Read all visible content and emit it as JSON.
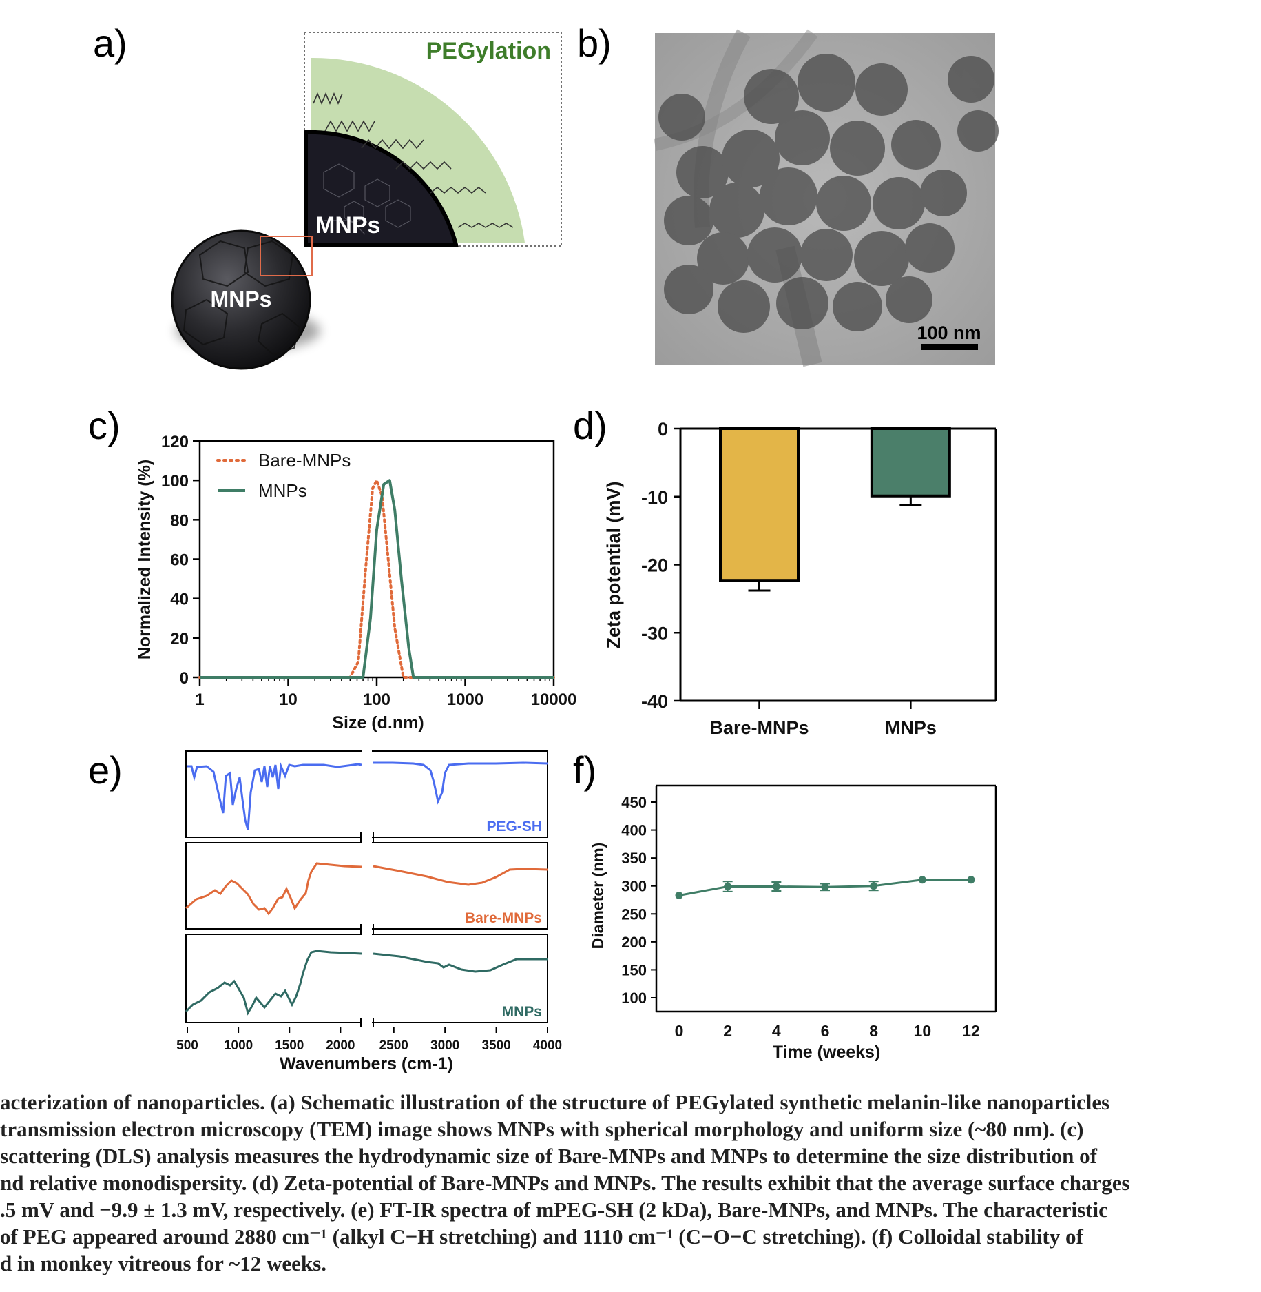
{
  "panels": {
    "a": "a)",
    "b": "b)",
    "c": "c)",
    "d": "d)",
    "e": "e)",
    "f": "f)"
  },
  "schematic": {
    "peg_label": "PEGylation",
    "core_label_inset": "MNPs",
    "core_label_sphere": "MNPs",
    "colors": {
      "peg_shell": "#c6ddb0",
      "peg_text": "#3e7d2a",
      "core": "#1b1a24",
      "inset_frame": "#e06b4a"
    }
  },
  "tem": {
    "scale_label": "100 nm"
  },
  "chart_data": [
    {
      "id": "c",
      "type": "line",
      "xlabel": "Size (d.nm)",
      "ylabel": "Normalized Intensity (%)",
      "xscale": "log",
      "xlim": [
        1,
        10000
      ],
      "ylim": [
        0,
        120
      ],
      "xticks": [
        "1",
        "10",
        "100",
        "1000",
        "10000"
      ],
      "yticks": [
        "0",
        "20",
        "40",
        "60",
        "80",
        "100",
        "120"
      ],
      "legend_position": "top-left",
      "series": [
        {
          "name": "Bare-MNPs",
          "style": "dotted",
          "color": "#e06a3a",
          "x": [
            1,
            50,
            62,
            75,
            90,
            100,
            115,
            135,
            160,
            200,
            10000
          ],
          "y": [
            0,
            0,
            8,
            55,
            96,
            100,
            92,
            60,
            25,
            0,
            0
          ]
        },
        {
          "name": "MNPs",
          "style": "solid",
          "color": "#3f7d66",
          "x": [
            1,
            70,
            85,
            100,
            120,
            140,
            160,
            190,
            230,
            260,
            10000
          ],
          "y": [
            0,
            0,
            30,
            75,
            98,
            100,
            85,
            50,
            15,
            0,
            0
          ]
        }
      ]
    },
    {
      "id": "d",
      "type": "bar",
      "ylabel": "Zeta potential (mV)",
      "ylim": [
        -40,
        0
      ],
      "yticks": [
        "0",
        "-10",
        "-20",
        "-30",
        "-40"
      ],
      "categories": [
        "Bare-MNPs",
        "MNPs"
      ],
      "values": [
        -22.3,
        -9.9
      ],
      "errors": [
        1.5,
        1.3
      ],
      "colors": [
        "#e3b548",
        "#4b7f6a"
      ]
    },
    {
      "id": "e",
      "type": "line",
      "xlabel": "Wavenumbers (cm-1)",
      "xticks": [
        "500",
        "1000",
        "1500",
        "2000",
        "2500",
        "3000",
        "3500",
        "4000"
      ],
      "x_break": [
        2200,
        2300
      ],
      "series": [
        {
          "name": "PEG-SH",
          "color": "#4a6cf0"
        },
        {
          "name": "Bare-MNPs",
          "color": "#e06a3a"
        },
        {
          "name": "MNPs",
          "color": "#2f6a63"
        }
      ]
    },
    {
      "id": "f",
      "type": "line",
      "xlabel": "Time (weeks)",
      "ylabel": "Diameter (nm)",
      "xlim": [
        0,
        12
      ],
      "ylim": [
        100,
        450
      ],
      "xticks": [
        "0",
        "2",
        "4",
        "6",
        "8",
        "10",
        "12"
      ],
      "yticks": [
        "100",
        "150",
        "200",
        "250",
        "300",
        "350",
        "400",
        "450"
      ],
      "series": [
        {
          "color": "#3f7d66",
          "x": [
            0,
            2,
            4,
            6,
            8,
            10,
            12
          ],
          "y": [
            283,
            299,
            299,
            298,
            300,
            311,
            311
          ],
          "err": [
            0,
            9,
            8,
            6,
            8,
            0,
            0
          ]
        }
      ]
    }
  ],
  "caption": [
    "acterization of nanoparticles. (a) Schematic illustration of the structure of PEGylated synthetic melanin-like nanoparticles",
    " transmission electron microscopy (TEM) image shows MNPs with spherical morphology and uniform size (~80 nm). (c)",
    "scattering (DLS) analysis measures the hydrodynamic size of Bare-MNPs and MNPs to determine the size distribution of",
    "nd relative monodispersity. (d) Zeta-potential of Bare-MNPs and MNPs. The results exhibit that the average surface charges",
    ".5 mV and −9.9 ± 1.3 mV, respectively. (e) FT-IR spectra of mPEG-SH (2 kDa), Bare-MNPs, and MNPs. The characteristic",
    "of PEG appeared around 2880 cm⁻¹ (alkyl C−H stretching) and 1110 cm⁻¹ (C−O−C stretching). (f) Colloidal stability of",
    "d in monkey vitreous for ~12 weeks."
  ]
}
